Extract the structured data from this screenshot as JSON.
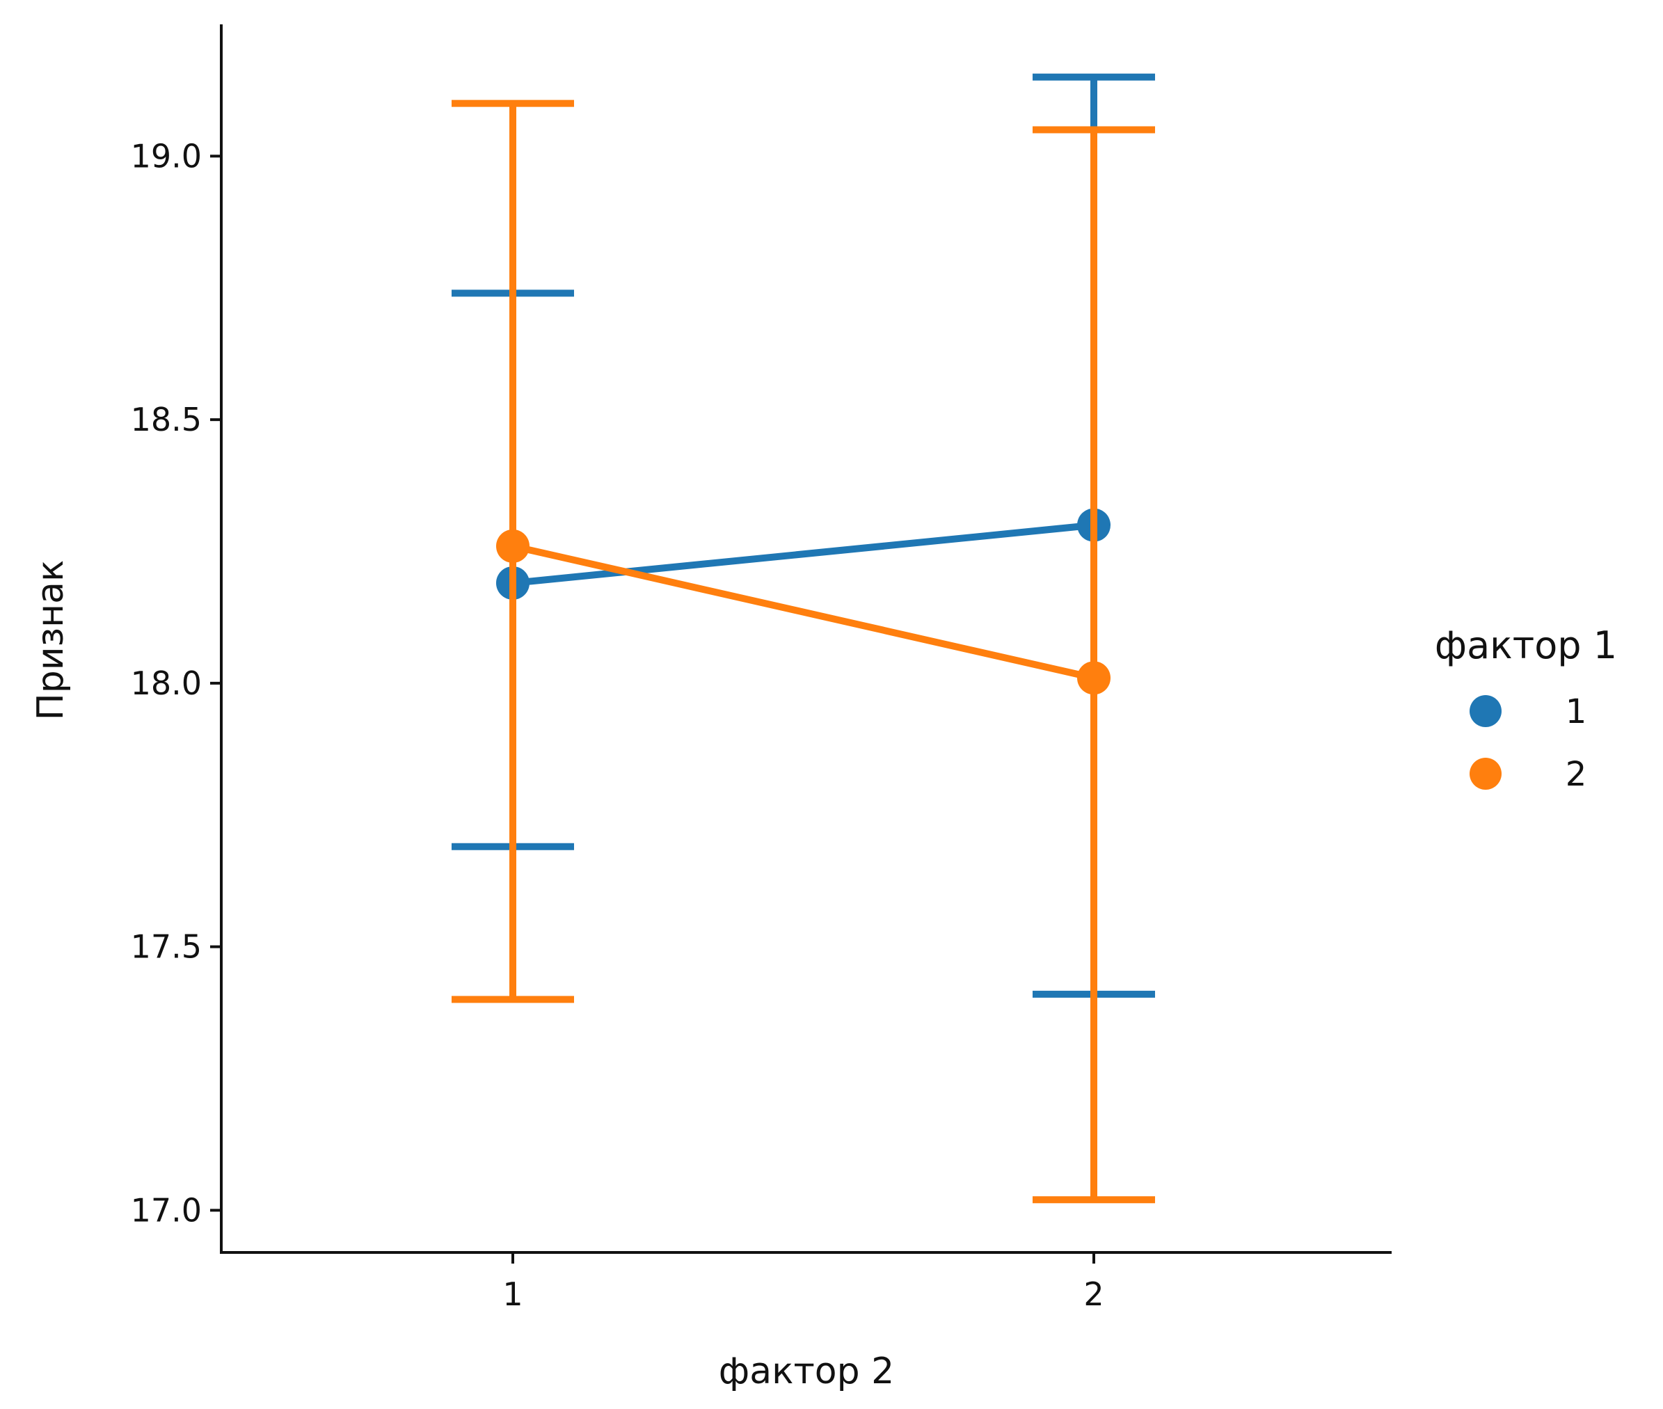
{
  "chart_data": {
    "type": "line",
    "title": "",
    "xlabel": "фактор 2",
    "ylabel": "Признак",
    "categories": [
      "1",
      "2"
    ],
    "ylim": [
      16.92,
      19.25
    ],
    "yticks": [
      "17.0",
      "17.5",
      "18.0",
      "18.5",
      "19.0"
    ],
    "grid": false,
    "legend": {
      "title": "фактор 1",
      "placement": "right"
    },
    "series": [
      {
        "name": "1",
        "color": "#1f77b4",
        "values": [
          18.19,
          18.3
        ],
        "error_low": [
          17.69,
          17.41
        ],
        "error_high": [
          18.74,
          19.15
        ]
      },
      {
        "name": "2",
        "color": "#ff7f0e",
        "values": [
          18.26,
          18.01
        ],
        "error_low": [
          17.4,
          17.02
        ],
        "error_high": [
          19.1,
          19.05
        ]
      }
    ]
  }
}
